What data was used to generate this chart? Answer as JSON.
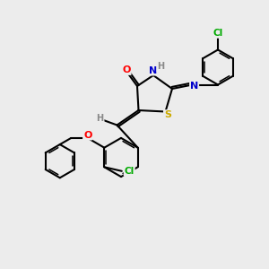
{
  "background_color": "#ececec",
  "bond_color": "#000000",
  "atom_colors": {
    "O": "#ff0000",
    "N": "#0000cc",
    "S": "#ccaa00",
    "Cl": "#00aa00",
    "H": "#888888",
    "C": "#000000"
  },
  "ring_lw": 1.5,
  "label_fontsize": 8
}
